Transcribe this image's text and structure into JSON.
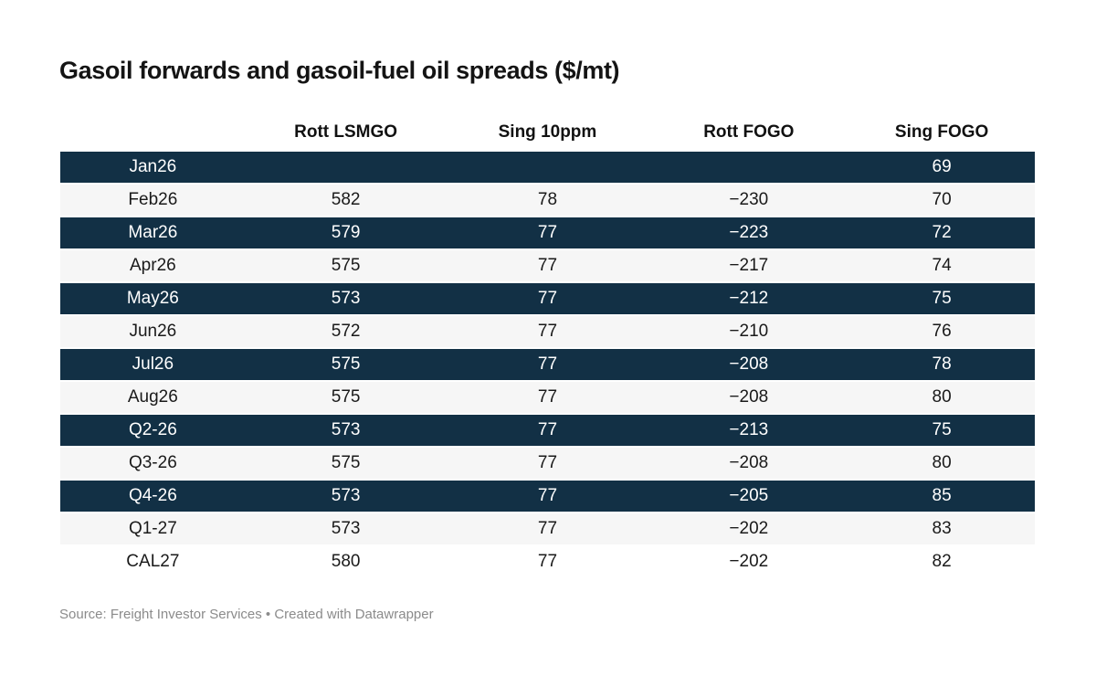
{
  "title": "Gasoil forwards and gasoil-fuel oil spreads ($/mt)",
  "footer": {
    "source_text": "Source: Freight Investor Services • Created with Datawrapper"
  },
  "colors": {
    "highlight_row_bg": "#123045",
    "highlight_row_text": "#ffffff",
    "stripe_row_bg": "#f6f6f6",
    "body_text": "#1a1a1a",
    "footer_text": "#8b8b8b"
  },
  "chart_data": {
    "type": "table",
    "title": "Gasoil forwards and gasoil-fuel oil spreads ($/mt)",
    "columns": [
      "",
      "Rott LSMGO",
      "Sing 10ppm",
      "Rott FOGO",
      "Sing FOGO"
    ],
    "column_widths": [
      "19%",
      "20.6%",
      "20.8%",
      "20.5%",
      "19.1%"
    ],
    "rows": [
      {
        "label": "Jan26",
        "values": [
          "",
          "",
          "",
          "69"
        ],
        "highlight": true
      },
      {
        "label": "Feb26",
        "values": [
          "582",
          "78",
          "−230",
          "70"
        ],
        "highlight": false
      },
      {
        "label": "Mar26",
        "values": [
          "579",
          "77",
          "−223",
          "72"
        ],
        "highlight": true
      },
      {
        "label": "Apr26",
        "values": [
          "575",
          "77",
          "−217",
          "74"
        ],
        "highlight": false
      },
      {
        "label": "May26",
        "values": [
          "573",
          "77",
          "−212",
          "75"
        ],
        "highlight": true
      },
      {
        "label": "Jun26",
        "values": [
          "572",
          "77",
          "−210",
          "76"
        ],
        "highlight": false
      },
      {
        "label": "Jul26",
        "values": [
          "575",
          "77",
          "−208",
          "78"
        ],
        "highlight": true
      },
      {
        "label": "Aug26",
        "values": [
          "575",
          "77",
          "−208",
          "80"
        ],
        "highlight": false
      },
      {
        "label": "Q2-26",
        "values": [
          "573",
          "77",
          "−213",
          "75"
        ],
        "highlight": true
      },
      {
        "label": "Q3-26",
        "values": [
          "575",
          "77",
          "−208",
          "80"
        ],
        "highlight": false
      },
      {
        "label": "Q4-26",
        "values": [
          "573",
          "77",
          "−205",
          "85"
        ],
        "highlight": true
      },
      {
        "label": "Q1-27",
        "values": [
          "573",
          "77",
          "−202",
          "83"
        ],
        "highlight": false
      },
      {
        "label": "CAL27",
        "values": [
          "580",
          "77",
          "−202",
          "82"
        ],
        "highlight": false,
        "plain": true
      }
    ]
  }
}
